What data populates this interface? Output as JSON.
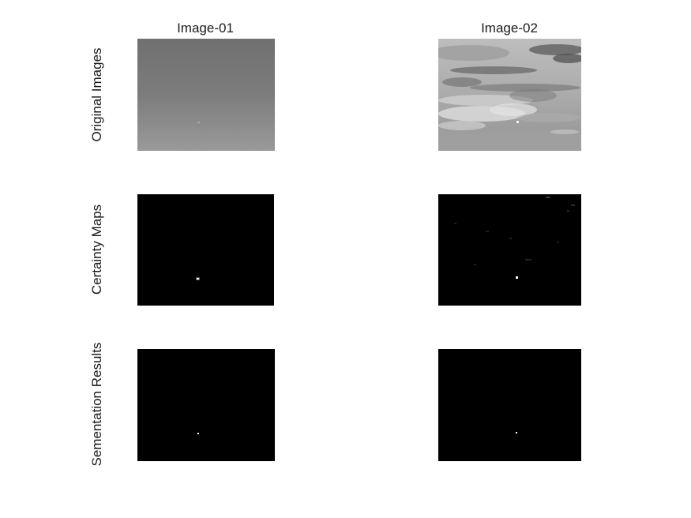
{
  "figure": {
    "columns": [
      {
        "title": "Image-01"
      },
      {
        "title": "Image-02"
      }
    ],
    "rows": [
      {
        "label": "Original Images"
      },
      {
        "label": "Certainty Maps"
      },
      {
        "label": "Sementation Results"
      }
    ]
  }
}
